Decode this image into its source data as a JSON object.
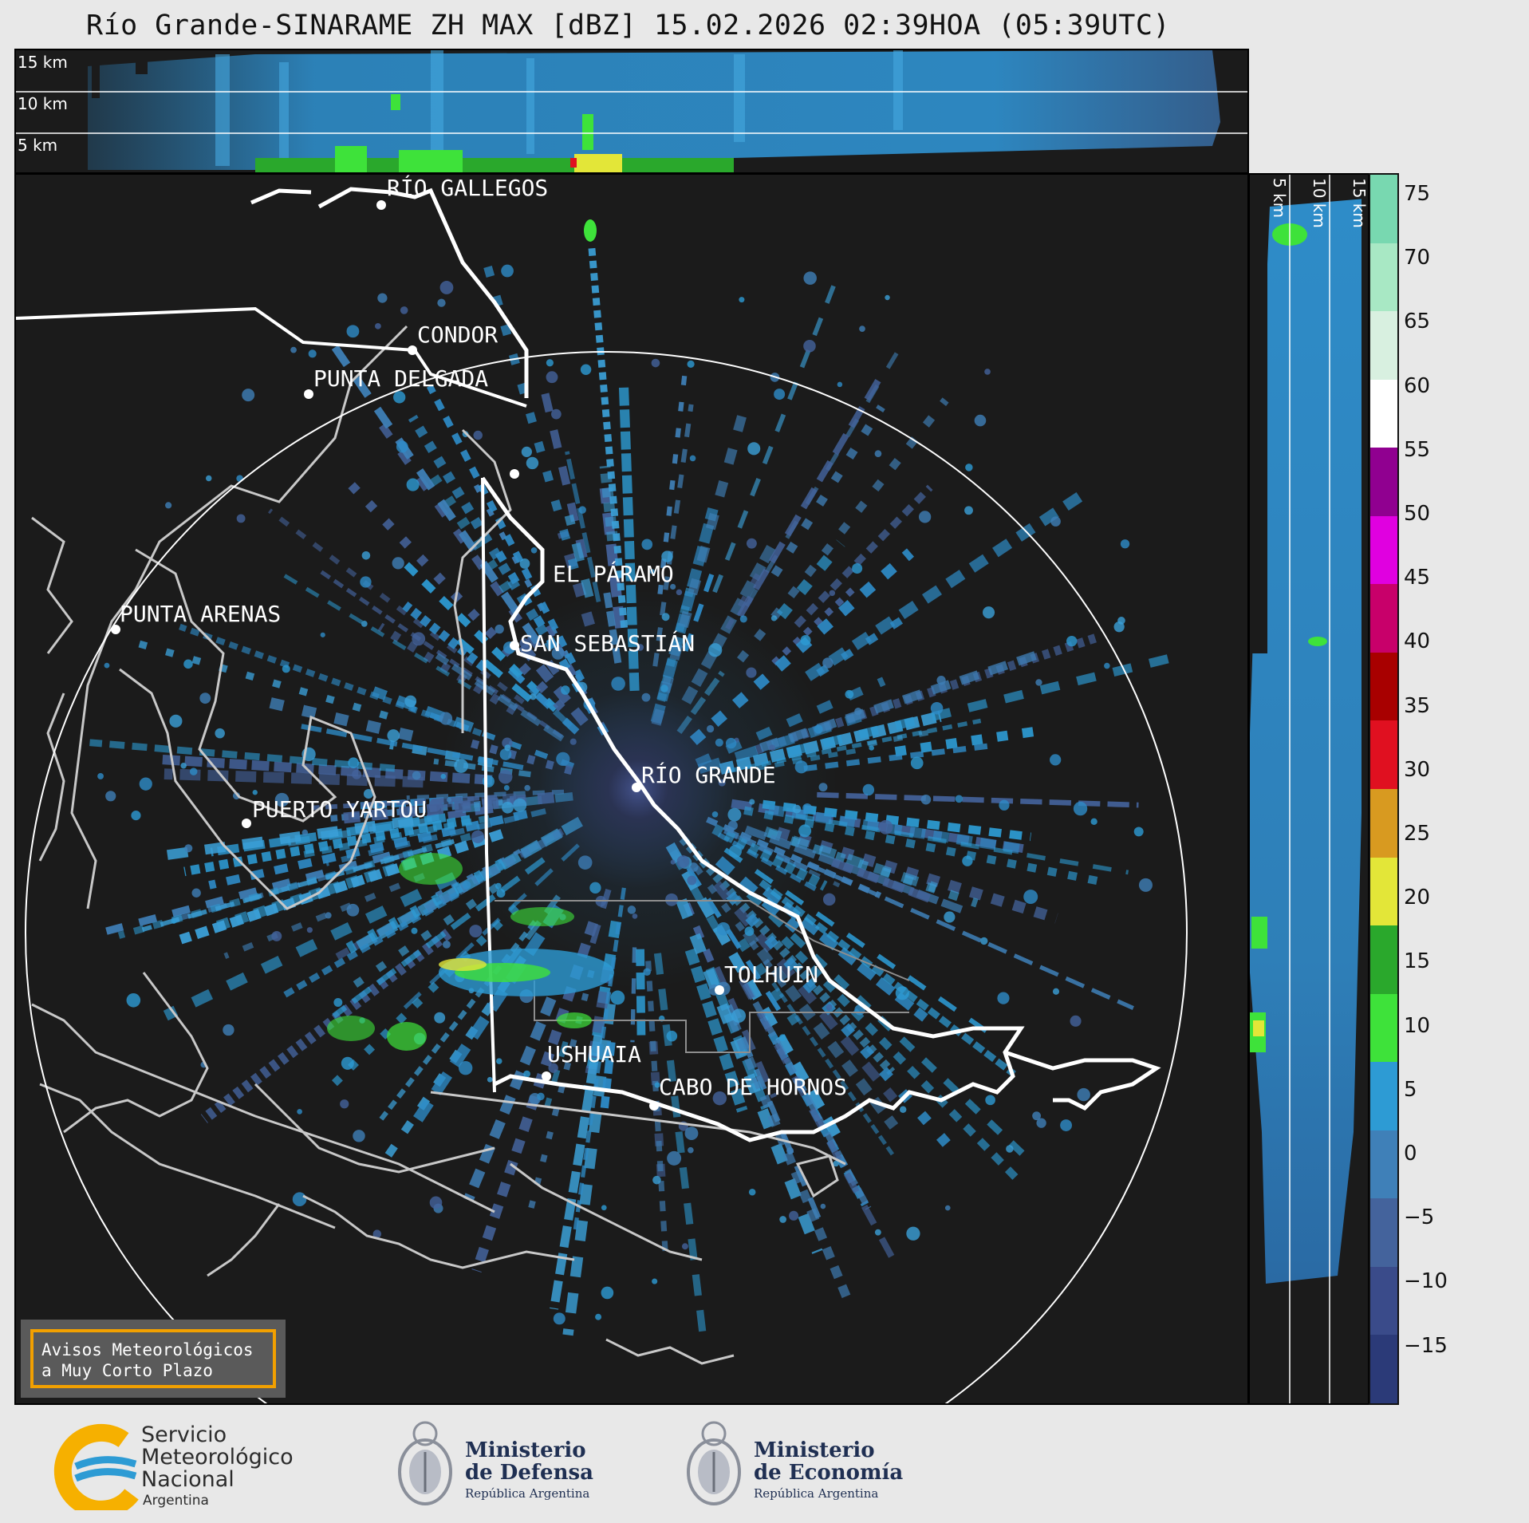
{
  "title": "Río Grande-SINARAME ZH MAX [dBZ] 15.02.2026 02:39HOA (05:39UTC)",
  "top_profile": {
    "labels": [
      "15 km",
      "10 km",
      "5 km"
    ]
  },
  "side_profile": {
    "labels": [
      "5 km",
      "10 km",
      "15 km"
    ]
  },
  "places": [
    {
      "name": "RÍO GALLEGOS"
    },
    {
      "name": "CONDOR"
    },
    {
      "name": "PUNTA DELGADA"
    },
    {
      "name": "PUNTA ARENAS"
    },
    {
      "name": "EL PÁRAMO"
    },
    {
      "name": "SAN SEBASTIÁN"
    },
    {
      "name": "RÍO GRANDE"
    },
    {
      "name": "PUERTO YARTOU"
    },
    {
      "name": "TOLHUIN"
    },
    {
      "name": "USHUAIA"
    },
    {
      "name": "CABO DE HORNOS"
    }
  ],
  "colorbar": {
    "unit": "dBZ",
    "ticks": [
      "75",
      "70",
      "65",
      "60",
      "55",
      "50",
      "45",
      "40",
      "35",
      "30",
      "25",
      "20",
      "15",
      "10",
      "5",
      "0",
      "−5",
      "−10",
      "−15"
    ],
    "colors": [
      "#2b3a78",
      "#3a4b8a",
      "#44639c",
      "#3f80b8",
      "#2d9bd4",
      "#3ee23a",
      "#2aa82c",
      "#e3e638",
      "#d89a20",
      "#e01020",
      "#a80000",
      "#c8006a",
      "#e000e0",
      "#900090",
      "#ffffff",
      "#d8f0e0",
      "#a8e8c4",
      "#78d8b0"
    ]
  },
  "banner": {
    "line1": "Avisos Meteorológicos",
    "line2": "a Muy Corto Plazo",
    "border_color": "#f2a000"
  },
  "logos": {
    "smn": {
      "line1": "Servicio",
      "line2": "Meteorológico",
      "line3": "Nacional",
      "line4": "Argentina",
      "icon": "smn-logo-icon"
    },
    "defensa": {
      "line1": "Ministerio",
      "line2": "de Defensa",
      "line3": "República Argentina",
      "icon": "argentina-coat-of-arms-icon"
    },
    "economia": {
      "line1": "Ministerio",
      "line2": "de Economía",
      "line3": "República Argentina",
      "icon": "argentina-coat-of-arms-icon"
    }
  }
}
